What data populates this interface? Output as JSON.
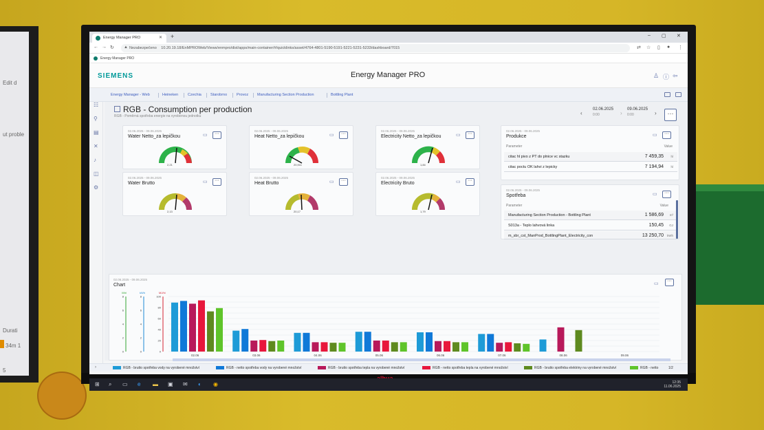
{
  "left_window": {
    "texts": [
      "Edit d",
      "ut proble",
      "Durati",
      "34m 1",
      "5"
    ]
  },
  "browser": {
    "tab_title": "Energy Manager PRO",
    "new_tab": "+",
    "win_min": "–",
    "win_max": "▢",
    "win_close": "✕",
    "insecure_label": "Nezabezpečeno",
    "url": "10.20.19.18/EnMPROWeb/Views/enmpro/dist/apps/main-container/#/quicklinks/asset/4764-4801-5190-5191-5221-5231-5233/dashboard/7015",
    "bookmark": "Energy Manager PRO"
  },
  "app": {
    "logo": "SIEMENS",
    "title": "Energy Manager PRO"
  },
  "breadcrumbs": [
    "Energy Manager - Web",
    "Heineken",
    "Czechia",
    "Starobrno",
    "Provoz",
    "Manufacturing Section Production",
    "Bottling Plant"
  ],
  "page": {
    "title": "RGB - Consumption per production",
    "subtitle": "RGB - Poměrná spotřeba energie na vyrobenou jednotku",
    "date_from": "02.06.2025",
    "date_from_time": "0:00",
    "date_to": "09.06.2025",
    "date_to_time": "0:00"
  },
  "gauges": [
    {
      "date": "02.06.2025 - 09.06.2025",
      "title": "Water Netto_za lepičkou",
      "value": "2,21"
    },
    {
      "date": "02.06.2025 - 09.06.2025",
      "title": "Heat Netto_za lepičkou",
      "value": "20,911"
    },
    {
      "date": "02.06.2025 - 09.06.2025",
      "title": "Electricity Netto_za lepičkou",
      "value": "1,84"
    },
    {
      "date": "02.06.2025 - 09.06.2025",
      "title": "Water Brutto",
      "value": "2,13"
    },
    {
      "date": "02.06.2025 - 09.06.2025",
      "title": "Heat Brutto",
      "value": "20,17"
    },
    {
      "date": "02.06.2025 - 09.06.2025",
      "title": "Electricity Bruto",
      "value": "1,79"
    }
  ],
  "produkce": {
    "date": "02.06.2025 - 09.06.2025",
    "title": "Produkce",
    "col_param": "Parameter",
    "col_value": "Value",
    "rows": [
      {
        "label": "citac hl pivo z PT do plnice vc stazku",
        "value": "7 459,35",
        "unit": "hl"
      },
      {
        "label": "citac poctu OK lahvi z lepicky",
        "value": "7 194,94",
        "unit": "hl"
      }
    ]
  },
  "spotreba": {
    "date": "02.06.2025 - 09.06.2025",
    "title": "Spotřeba",
    "col_param": "Parameter",
    "col_value": "Value",
    "rows": [
      {
        "label": "Manufacturing Section Production - Bottling Plant",
        "value": "1 586,69",
        "unit": "m³"
      },
      {
        "label": "S013a - Teplo lahvová linka",
        "value": "150,45",
        "unit": "GJ"
      },
      {
        "label": "m_sbr_cst_ManProd_BottlingPlant_Electricity_con",
        "value": "13 250,70",
        "unit": "kWh"
      }
    ]
  },
  "chart_card": {
    "date": "02.06.2025 - 09.06.2025",
    "title": "Chart"
  },
  "chart_data": {
    "type": "bar",
    "categories": [
      "02.06",
      "03.06",
      "04.06",
      "05.06",
      "06.06",
      "07.06",
      "08.06",
      "09.06"
    ],
    "axes": [
      {
        "unit": "l/l/hl",
        "color": "#33a532",
        "ticks": [
          "8",
          "6",
          "4",
          "2",
          "0"
        ]
      },
      {
        "unit": "kWh",
        "color": "#1c8ad6",
        "ticks": [
          "8",
          "6",
          "4",
          "2",
          "0"
        ]
      },
      {
        "unit": "MJ/hl",
        "color": "#d62030",
        "ticks": [
          "100",
          "80",
          "60",
          "40",
          "20",
          "0"
        ],
        "range": [
          0,
          100
        ]
      }
    ],
    "series": [
      {
        "name": "RGB - brutto spotřeba vody na vyrobené množství",
        "color": "#1e9bd7",
        "values": [
          89,
          38,
          34,
          36,
          35,
          32,
          22,
          null
        ]
      },
      {
        "name": "RGB - netto spotřeba vody na vyrobené množství",
        "color": "#1079d8",
        "values": [
          92,
          41,
          34,
          36,
          35,
          32,
          null,
          null
        ]
      },
      {
        "name": "RGB - brutto spotřeba tepla na vyrobené množství",
        "color": "#b8195a",
        "values": [
          87,
          20,
          17,
          20,
          19,
          16,
          44,
          null
        ]
      },
      {
        "name": "RGB - netto spotřeba tepla na vyrobené množství",
        "color": "#e8173c",
        "values": [
          93,
          21,
          17,
          20,
          19,
          17,
          null,
          null
        ]
      },
      {
        "name": "RGB - brutto spotřeba elektriny na vyrobené množství",
        "color": "#5e8a1f",
        "values": [
          73,
          19,
          16,
          17,
          17,
          15,
          39,
          null
        ]
      },
      {
        "name": "RGB - netto",
        "color": "#5fc42a",
        "values": [
          79,
          20,
          16,
          17,
          17,
          14,
          null,
          null
        ]
      }
    ],
    "legend_page": "1/2"
  },
  "taskbar": {
    "time": "12:35",
    "date": "11.06.2025"
  },
  "tv": {
    "brand": "alhua"
  }
}
